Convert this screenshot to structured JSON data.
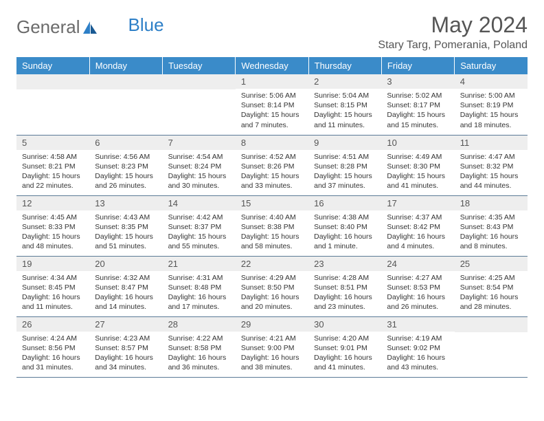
{
  "logo": {
    "text1": "General",
    "text2": "Blue"
  },
  "title": "May 2024",
  "location": "Stary Targ, Pomerania, Poland",
  "colors": {
    "header_bg": "#3a8bc9",
    "header_text": "#ffffff",
    "daynum_bg": "#eeeeee",
    "row_border": "#5a7a96",
    "logo_gray": "#6b6b6b",
    "logo_blue": "#2d7fc7"
  },
  "day_headers": [
    "Sunday",
    "Monday",
    "Tuesday",
    "Wednesday",
    "Thursday",
    "Friday",
    "Saturday"
  ],
  "weeks": [
    [
      null,
      null,
      null,
      {
        "n": "1",
        "sr": "5:06 AM",
        "ss": "8:14 PM",
        "dl": "15 hours and 7 minutes."
      },
      {
        "n": "2",
        "sr": "5:04 AM",
        "ss": "8:15 PM",
        "dl": "15 hours and 11 minutes."
      },
      {
        "n": "3",
        "sr": "5:02 AM",
        "ss": "8:17 PM",
        "dl": "15 hours and 15 minutes."
      },
      {
        "n": "4",
        "sr": "5:00 AM",
        "ss": "8:19 PM",
        "dl": "15 hours and 18 minutes."
      }
    ],
    [
      {
        "n": "5",
        "sr": "4:58 AM",
        "ss": "8:21 PM",
        "dl": "15 hours and 22 minutes."
      },
      {
        "n": "6",
        "sr": "4:56 AM",
        "ss": "8:23 PM",
        "dl": "15 hours and 26 minutes."
      },
      {
        "n": "7",
        "sr": "4:54 AM",
        "ss": "8:24 PM",
        "dl": "15 hours and 30 minutes."
      },
      {
        "n": "8",
        "sr": "4:52 AM",
        "ss": "8:26 PM",
        "dl": "15 hours and 33 minutes."
      },
      {
        "n": "9",
        "sr": "4:51 AM",
        "ss": "8:28 PM",
        "dl": "15 hours and 37 minutes."
      },
      {
        "n": "10",
        "sr": "4:49 AM",
        "ss": "8:30 PM",
        "dl": "15 hours and 41 minutes."
      },
      {
        "n": "11",
        "sr": "4:47 AM",
        "ss": "8:32 PM",
        "dl": "15 hours and 44 minutes."
      }
    ],
    [
      {
        "n": "12",
        "sr": "4:45 AM",
        "ss": "8:33 PM",
        "dl": "15 hours and 48 minutes."
      },
      {
        "n": "13",
        "sr": "4:43 AM",
        "ss": "8:35 PM",
        "dl": "15 hours and 51 minutes."
      },
      {
        "n": "14",
        "sr": "4:42 AM",
        "ss": "8:37 PM",
        "dl": "15 hours and 55 minutes."
      },
      {
        "n": "15",
        "sr": "4:40 AM",
        "ss": "8:38 PM",
        "dl": "15 hours and 58 minutes."
      },
      {
        "n": "16",
        "sr": "4:38 AM",
        "ss": "8:40 PM",
        "dl": "16 hours and 1 minute."
      },
      {
        "n": "17",
        "sr": "4:37 AM",
        "ss": "8:42 PM",
        "dl": "16 hours and 4 minutes."
      },
      {
        "n": "18",
        "sr": "4:35 AM",
        "ss": "8:43 PM",
        "dl": "16 hours and 8 minutes."
      }
    ],
    [
      {
        "n": "19",
        "sr": "4:34 AM",
        "ss": "8:45 PM",
        "dl": "16 hours and 11 minutes."
      },
      {
        "n": "20",
        "sr": "4:32 AM",
        "ss": "8:47 PM",
        "dl": "16 hours and 14 minutes."
      },
      {
        "n": "21",
        "sr": "4:31 AM",
        "ss": "8:48 PM",
        "dl": "16 hours and 17 minutes."
      },
      {
        "n": "22",
        "sr": "4:29 AM",
        "ss": "8:50 PM",
        "dl": "16 hours and 20 minutes."
      },
      {
        "n": "23",
        "sr": "4:28 AM",
        "ss": "8:51 PM",
        "dl": "16 hours and 23 minutes."
      },
      {
        "n": "24",
        "sr": "4:27 AM",
        "ss": "8:53 PM",
        "dl": "16 hours and 26 minutes."
      },
      {
        "n": "25",
        "sr": "4:25 AM",
        "ss": "8:54 PM",
        "dl": "16 hours and 28 minutes."
      }
    ],
    [
      {
        "n": "26",
        "sr": "4:24 AM",
        "ss": "8:56 PM",
        "dl": "16 hours and 31 minutes."
      },
      {
        "n": "27",
        "sr": "4:23 AM",
        "ss": "8:57 PM",
        "dl": "16 hours and 34 minutes."
      },
      {
        "n": "28",
        "sr": "4:22 AM",
        "ss": "8:58 PM",
        "dl": "16 hours and 36 minutes."
      },
      {
        "n": "29",
        "sr": "4:21 AM",
        "ss": "9:00 PM",
        "dl": "16 hours and 38 minutes."
      },
      {
        "n": "30",
        "sr": "4:20 AM",
        "ss": "9:01 PM",
        "dl": "16 hours and 41 minutes."
      },
      {
        "n": "31",
        "sr": "4:19 AM",
        "ss": "9:02 PM",
        "dl": "16 hours and 43 minutes."
      },
      null
    ]
  ],
  "labels": {
    "sunrise": "Sunrise:",
    "sunset": "Sunset:",
    "daylight": "Daylight:"
  }
}
